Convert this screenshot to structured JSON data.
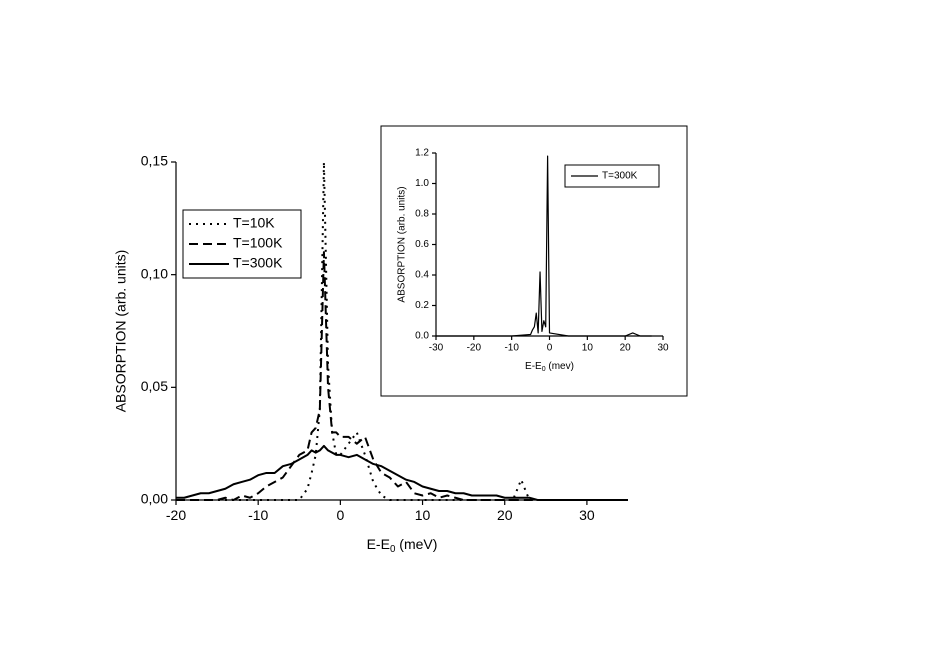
{
  "chart_data": [
    {
      "type": "line",
      "xlabel": [
        "E-E",
        "0",
        " (meV)"
      ],
      "ylabel": "ABSORPTION (arb. units)",
      "xlim": [
        -20,
        35
      ],
      "xticks": [
        -20,
        -10,
        0,
        10,
        20,
        30
      ],
      "ylim": [
        0,
        0.15
      ],
      "yticks": [
        {
          "value": 0,
          "label": "0,00"
        },
        {
          "value": 0.05,
          "label": "0,05"
        },
        {
          "value": 0.1,
          "label": "0,10"
        },
        {
          "value": 0.15,
          "label": "0,15"
        }
      ],
      "legend": "upper left",
      "x": [
        -20,
        -19,
        -18,
        -17,
        -16,
        -15,
        -14,
        -13,
        -12,
        -11,
        -10,
        -9,
        -8,
        -7,
        -6,
        -5,
        -4,
        -3.5,
        -3,
        -2.5,
        -2,
        -1.5,
        -1,
        -0.5,
        0,
        1,
        2,
        3,
        4,
        5,
        6,
        7,
        8,
        9,
        10,
        11,
        12,
        13,
        14,
        15,
        16,
        17,
        18,
        19,
        20,
        21,
        22,
        23,
        24,
        25,
        26,
        27,
        28,
        29,
        30,
        31,
        32,
        33,
        34,
        35
      ],
      "series": [
        {
          "name": "T=10K",
          "color": "#000000",
          "linestyle": "dotted",
          "values": [
            0,
            0,
            0,
            0,
            0,
            0,
            0,
            0,
            0,
            0,
            0,
            0,
            0,
            0,
            0,
            0,
            0.005,
            0.012,
            0.02,
            0.04,
            0.15,
            0.06,
            0.03,
            0.02,
            0.02,
            0.025,
            0.03,
            0.02,
            0.008,
            0.002,
            0,
            0,
            0,
            0,
            0,
            0,
            0,
            0,
            0,
            0,
            0,
            0,
            0,
            0,
            0,
            0,
            0.009,
            0,
            0,
            0,
            0,
            0,
            0,
            0,
            0,
            0,
            0,
            0,
            0,
            0
          ]
        },
        {
          "name": "T=100K",
          "color": "#000000",
          "linestyle": "dashed",
          "values": [
            0,
            0,
            0,
            0,
            0,
            0,
            0.001,
            0,
            0.002,
            0.001,
            0.003,
            0.006,
            0.008,
            0.01,
            0.015,
            0.02,
            0.022,
            0.03,
            0.032,
            0.04,
            0.11,
            0.05,
            0.03,
            0.03,
            0.028,
            0.028,
            0.025,
            0.028,
            0.018,
            0.012,
            0.01,
            0.006,
            0.008,
            0.003,
            0.002,
            0.003,
            0.001,
            0.002,
            0.001,
            0,
            0,
            0,
            0,
            0,
            0,
            0,
            0,
            0,
            0,
            0,
            0,
            0,
            0,
            0,
            0,
            0,
            0,
            0,
            0,
            0
          ]
        },
        {
          "name": "T=300K",
          "color": "#000000",
          "linestyle": "solid",
          "values": [
            0.001,
            0.001,
            0.002,
            0.003,
            0.003,
            0.004,
            0.005,
            0.007,
            0.008,
            0.009,
            0.011,
            0.012,
            0.012,
            0.015,
            0.016,
            0.018,
            0.02,
            0.022,
            0.021,
            0.022,
            0.024,
            0.022,
            0.021,
            0.02,
            0.02,
            0.019,
            0.02,
            0.018,
            0.016,
            0.015,
            0.013,
            0.011,
            0.009,
            0.008,
            0.006,
            0.005,
            0.004,
            0.004,
            0.003,
            0.003,
            0.002,
            0.002,
            0.002,
            0.002,
            0.001,
            0.001,
            0.001,
            0.001,
            0,
            0,
            0,
            0,
            0,
            0,
            0,
            0,
            0,
            0,
            0,
            0
          ]
        }
      ]
    },
    {
      "type": "line",
      "xlabel": [
        "E-E",
        "0",
        " (mev)"
      ],
      "ylabel": "ABSORPTION (arb. units)",
      "xlim": [
        -30,
        30
      ],
      "xticks": [
        -30,
        -20,
        -10,
        0,
        10,
        20,
        30
      ],
      "ylim": [
        0,
        1.2
      ],
      "yticks": [
        {
          "value": 0,
          "label": "0.0"
        },
        0.2,
        0.4,
        0.6,
        0.8,
        {
          "value": 1,
          "label": "1.0"
        },
        1.2
      ],
      "legend": "upper right",
      "x": [
        -30,
        -10,
        -5,
        -4.5,
        -4,
        -3.5,
        -3,
        -2.5,
        -2,
        -1.5,
        -1,
        -0.5,
        0,
        5,
        20,
        22,
        24,
        27
      ],
      "series": [
        {
          "name": "T=300K",
          "color": "#000000",
          "linestyle": "solid",
          "values": [
            0,
            0,
            0.01,
            0.04,
            0.06,
            0.15,
            0.02,
            0.42,
            0.03,
            0.1,
            0.06,
            1.18,
            0.02,
            0,
            0,
            0.02,
            0,
            0
          ]
        }
      ]
    }
  ]
}
